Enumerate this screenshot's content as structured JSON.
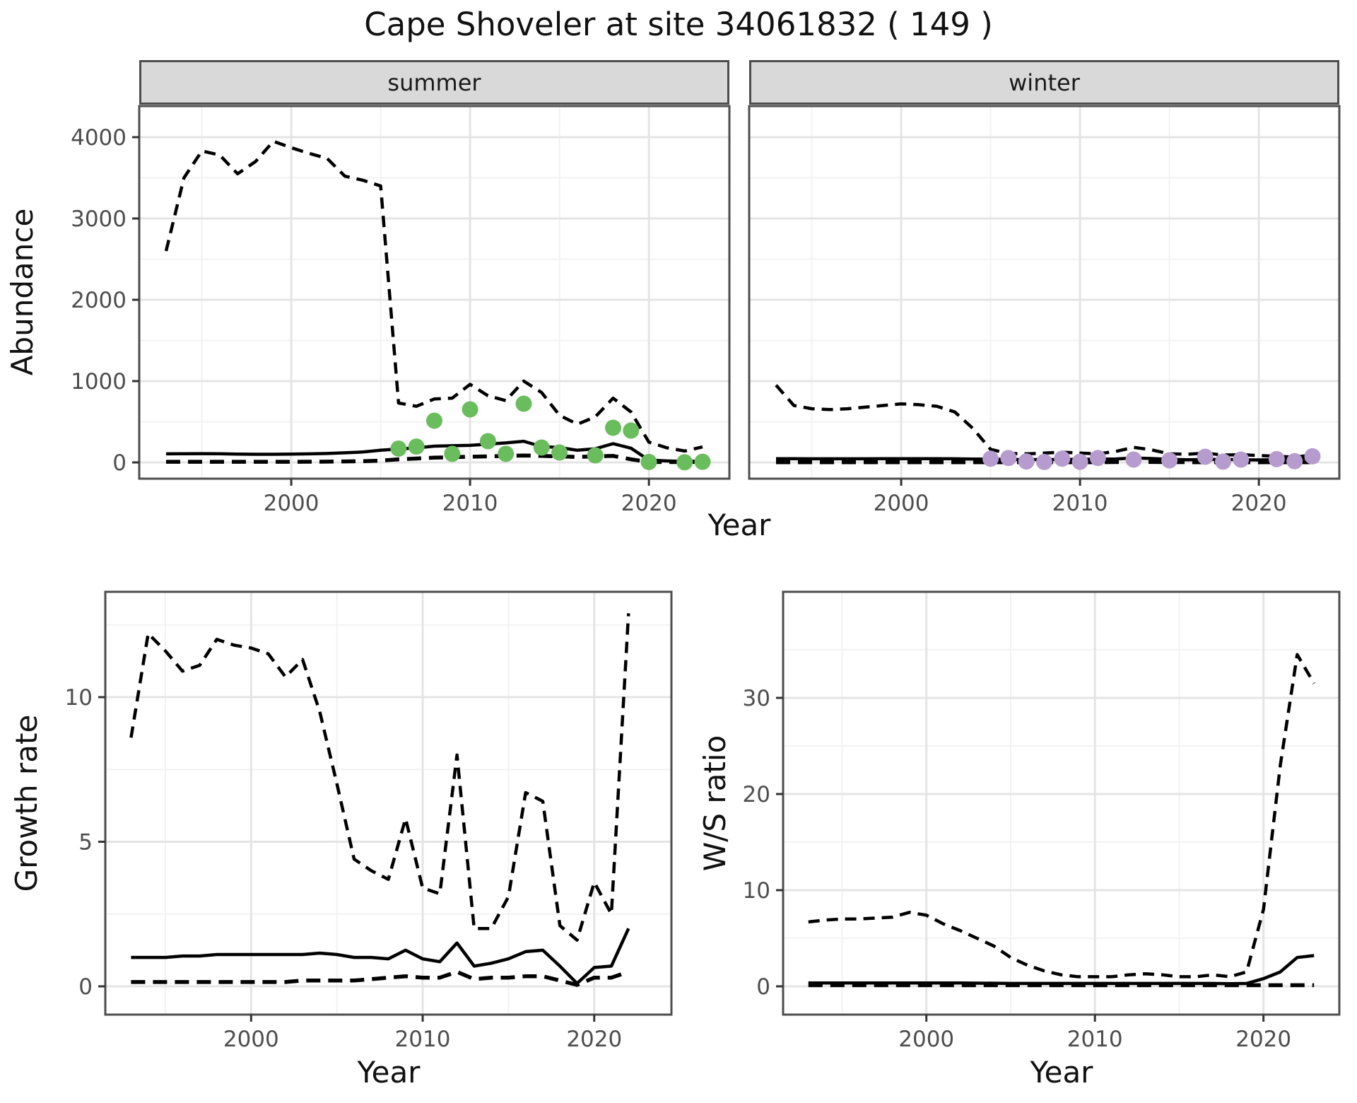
{
  "title": "Cape Shoveler at site 34061832 ( 149 )",
  "facets": {
    "summer": "summer",
    "winter": "winter"
  },
  "axes": {
    "abundance_label": "Abundance",
    "year_label": "Year",
    "growth_label": "Growth rate",
    "ws_label": "W/S ratio"
  },
  "colors": {
    "line": "#000000",
    "grid_major": "#e4e4e4",
    "grid_minor": "#f2f2f2",
    "panel_border": "#4d4d4d",
    "strip_fill": "#d9d9d9",
    "tick_text": "#4d4d4d",
    "summer_point": "#6abd5c",
    "winter_point": "#b69cce"
  },
  "chart_data": [
    {
      "type": "line",
      "facet": "summer",
      "title": "summer",
      "xlabel": "Year",
      "ylabel": "Abundance",
      "xlim": [
        1991.5,
        2024.5
      ],
      "ylim": [
        -200,
        4380
      ],
      "xticks": {
        "values": [
          2000,
          2010,
          2020
        ],
        "labels": [
          "2000",
          "2010",
          "2020"
        ]
      },
      "xminor": [
        1995,
        2005,
        2015
      ],
      "yticks": {
        "values": [
          0,
          1000,
          2000,
          3000,
          4000
        ],
        "labels": [
          "0",
          "1000",
          "2000",
          "3000",
          "4000"
        ]
      },
      "yminor": [
        500,
        1500,
        2500,
        3500
      ],
      "x": [
        1993,
        1994,
        1995,
        1996,
        1997,
        1998,
        1999,
        2000,
        2001,
        2002,
        2003,
        2004,
        2005,
        2006,
        2007,
        2008,
        2009,
        2010,
        2011,
        2012,
        2013,
        2014,
        2015,
        2016,
        2017,
        2018,
        2019,
        2020,
        2021,
        2022,
        2023
      ],
      "series": [
        {
          "name": "upper_ci",
          "style": "dashed",
          "values": [
            2600,
            3500,
            3830,
            3780,
            3550,
            3700,
            3950,
            3870,
            3800,
            3740,
            3520,
            3470,
            3400,
            730,
            690,
            780,
            790,
            960,
            820,
            760,
            1000,
            860,
            580,
            470,
            560,
            790,
            620,
            250,
            180,
            140,
            190
          ]
        },
        {
          "name": "median",
          "style": "solid",
          "values": [
            105,
            107,
            108,
            106,
            103,
            100,
            100,
            102,
            105,
            110,
            118,
            128,
            150,
            165,
            178,
            200,
            205,
            210,
            225,
            240,
            260,
            196,
            183,
            150,
            168,
            230,
            175,
            28,
            18,
            12,
            15
          ]
        },
        {
          "name": "lower_ci",
          "style": "longdash",
          "values": [
            8,
            8,
            8,
            8,
            8,
            8,
            8,
            8,
            9,
            10,
            12,
            15,
            22,
            38,
            48,
            58,
            64,
            70,
            74,
            80,
            85,
            80,
            74,
            68,
            74,
            80,
            38,
            6,
            4,
            4,
            8
          ]
        }
      ],
      "points": {
        "name": "observed_counts_summer",
        "x": [
          2006,
          2007,
          2008,
          2009,
          2010,
          2011,
          2012,
          2013,
          2014,
          2015,
          2017,
          2018,
          2019,
          2020,
          2022,
          2023
        ],
        "y": [
          170,
          195,
          513,
          105,
          652,
          261,
          105,
          722,
          183,
          122,
          87,
          426,
          391,
          5,
          3,
          8
        ]
      }
    },
    {
      "type": "line",
      "facet": "winter",
      "title": "winter",
      "xlabel": "Year",
      "ylabel": "Abundance",
      "xlim": [
        1991.5,
        2024.5
      ],
      "ylim": [
        -200,
        4380
      ],
      "xticks": {
        "values": [
          2000,
          2010,
          2020
        ],
        "labels": [
          "2000",
          "2010",
          "2020"
        ]
      },
      "xminor": [
        1995,
        2005,
        2015
      ],
      "yticks": {
        "values": [
          0,
          1000,
          2000,
          3000,
          4000
        ],
        "labels": [
          "0",
          "1000",
          "2000",
          "3000",
          "4000"
        ]
      },
      "yminor": [
        500,
        1500,
        2500,
        3500
      ],
      "x": [
        1993,
        1994,
        1995,
        1996,
        1997,
        1998,
        1999,
        2000,
        2001,
        2002,
        2003,
        2004,
        2005,
        2006,
        2007,
        2008,
        2009,
        2010,
        2011,
        2012,
        2013,
        2014,
        2015,
        2016,
        2017,
        2018,
        2019,
        2020,
        2021,
        2022,
        2023
      ],
      "series": [
        {
          "name": "upper_ci",
          "style": "dashed",
          "values": [
            950,
            700,
            660,
            650,
            660,
            680,
            700,
            720,
            710,
            690,
            620,
            420,
            160,
            110,
            105,
            115,
            125,
            115,
            105,
            135,
            185,
            155,
            105,
            100,
            115,
            90,
            95,
            85,
            75,
            65,
            90
          ]
        },
        {
          "name": "median",
          "style": "solid",
          "values": [
            45,
            45,
            44,
            44,
            44,
            44,
            45,
            46,
            46,
            45,
            44,
            42,
            40,
            37,
            35,
            35,
            36,
            38,
            40,
            43,
            55,
            48,
            38,
            33,
            35,
            38,
            33,
            30,
            32,
            35,
            60
          ]
        },
        {
          "name": "lower_ci",
          "style": "longdash",
          "values": [
            2,
            2,
            2,
            2,
            2,
            2,
            2,
            2,
            2,
            2,
            2,
            2,
            2,
            3,
            3,
            3,
            3,
            3,
            3,
            4,
            5,
            5,
            4,
            3,
            3,
            3,
            3,
            2,
            2,
            2,
            3
          ]
        }
      ],
      "points": {
        "name": "observed_counts_winter",
        "x": [
          2005,
          2006,
          2007,
          2008,
          2009,
          2010,
          2011,
          2013,
          2015,
          2017,
          2018,
          2019,
          2021,
          2022,
          2023
        ],
        "y": [
          45,
          55,
          12,
          5,
          45,
          8,
          55,
          35,
          25,
          70,
          10,
          35,
          40,
          15,
          75
        ]
      }
    },
    {
      "type": "line",
      "facet": "none",
      "title": "Growth rate",
      "xlabel": "Year",
      "ylabel": "Growth rate",
      "xlim": [
        1991.5,
        2024.5
      ],
      "ylim": [
        -1.0,
        13.6
      ],
      "xticks": {
        "values": [
          2000,
          2010,
          2020
        ],
        "labels": [
          "2000",
          "2010",
          "2020"
        ]
      },
      "xminor": [
        1995,
        2005,
        2015
      ],
      "yticks": {
        "values": [
          0,
          5,
          10
        ],
        "labels": [
          "0",
          "5",
          "10"
        ]
      },
      "yminor": [
        2.5,
        7.5,
        12.5
      ],
      "x": [
        1993,
        1994,
        1995,
        1996,
        1997,
        1998,
        1999,
        2000,
        2001,
        2002,
        2003,
        2004,
        2005,
        2006,
        2007,
        2008,
        2009,
        2010,
        2011,
        2012,
        2013,
        2014,
        2015,
        2016,
        2017,
        2018,
        2019,
        2020,
        2021,
        2022
      ],
      "series": [
        {
          "name": "upper_ci",
          "style": "dashed",
          "values": [
            8.6,
            12.2,
            11.6,
            10.9,
            11.1,
            12.0,
            11.8,
            11.7,
            11.5,
            10.7,
            11.3,
            9.5,
            7.0,
            4.4,
            4.0,
            3.7,
            5.8,
            3.4,
            3.2,
            8.0,
            2.0,
            2.0,
            3.1,
            6.7,
            6.4,
            2.1,
            1.6,
            3.6,
            2.5,
            12.9
          ]
        },
        {
          "name": "median",
          "style": "solid",
          "values": [
            1.0,
            1.0,
            1.0,
            1.05,
            1.05,
            1.1,
            1.1,
            1.1,
            1.1,
            1.1,
            1.1,
            1.15,
            1.1,
            1.0,
            1.0,
            0.95,
            1.25,
            0.95,
            0.85,
            1.5,
            0.7,
            0.8,
            0.95,
            1.2,
            1.25,
            0.7,
            0.1,
            0.65,
            0.7,
            2.0
          ]
        },
        {
          "name": "lower_ci",
          "style": "longdash",
          "values": [
            0.15,
            0.15,
            0.15,
            0.15,
            0.15,
            0.15,
            0.15,
            0.15,
            0.15,
            0.15,
            0.2,
            0.2,
            0.2,
            0.2,
            0.25,
            0.3,
            0.35,
            0.3,
            0.3,
            0.5,
            0.25,
            0.3,
            0.3,
            0.35,
            0.35,
            0.2,
            0.05,
            0.3,
            0.3,
            0.5
          ]
        }
      ],
      "points": null
    },
    {
      "type": "line",
      "facet": "none",
      "title": "W/S ratio",
      "xlabel": "Year",
      "ylabel": "W/S ratio",
      "xlim": [
        1991.5,
        2024.5
      ],
      "ylim": [
        -1.0,
        41.0
      ],
      "xticks": {
        "values": [
          2000,
          2010,
          2020
        ],
        "labels": [
          "2000",
          "2010",
          "2020"
        ]
      },
      "xminor": [
        1995,
        2005,
        2015
      ],
      "yticks": {
        "values": [
          0,
          10,
          20,
          30
        ],
        "labels": [
          "0",
          "10",
          "20",
          "30"
        ]
      },
      "yminor": [
        5,
        15,
        25,
        35
      ],
      "x": [
        1993,
        1994,
        1995,
        1996,
        1997,
        1998,
        1999,
        2000,
        2001,
        2002,
        2003,
        2004,
        2005,
        2006,
        2007,
        2008,
        2009,
        2010,
        2011,
        2012,
        2013,
        2014,
        2015,
        2016,
        2017,
        2018,
        2019,
        2020,
        2021,
        2022,
        2023
      ],
      "series": [
        {
          "name": "upper_ci",
          "style": "dashed",
          "values": [
            6.7,
            6.9,
            7.0,
            7.0,
            7.1,
            7.2,
            7.7,
            7.4,
            6.5,
            5.8,
            5.0,
            4.2,
            3.0,
            2.2,
            1.6,
            1.2,
            1.0,
            1.0,
            1.0,
            1.2,
            1.3,
            1.2,
            1.0,
            1.0,
            1.2,
            1.0,
            1.5,
            8.0,
            23.0,
            34.5,
            31.5
          ]
        },
        {
          "name": "median",
          "style": "solid",
          "values": [
            0.35,
            0.35,
            0.35,
            0.35,
            0.35,
            0.35,
            0.35,
            0.35,
            0.35,
            0.35,
            0.33,
            0.32,
            0.3,
            0.3,
            0.3,
            0.3,
            0.3,
            0.3,
            0.3,
            0.3,
            0.3,
            0.3,
            0.3,
            0.3,
            0.3,
            0.28,
            0.3,
            0.8,
            1.5,
            3.0,
            3.2
          ]
        },
        {
          "name": "lower_ci",
          "style": "longdash",
          "values": [
            0.12,
            0.12,
            0.12,
            0.12,
            0.12,
            0.12,
            0.12,
            0.12,
            0.12,
            0.12,
            0.12,
            0.12,
            0.12,
            0.12,
            0.12,
            0.12,
            0.12,
            0.12,
            0.12,
            0.12,
            0.12,
            0.12,
            0.12,
            0.12,
            0.12,
            0.12,
            0.12,
            0.12,
            0.12,
            0.12,
            0.12
          ]
        }
      ],
      "points": null
    }
  ]
}
